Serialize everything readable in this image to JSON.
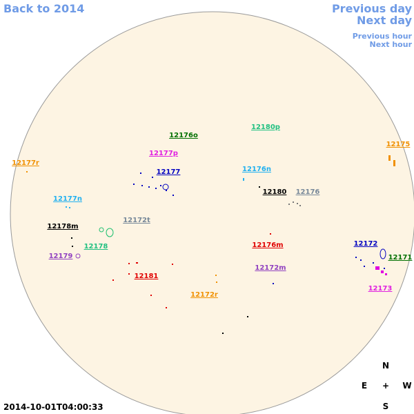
{
  "navigation": {
    "back": "Back to 2014",
    "previous_day": "Previous day",
    "next_day": "Next day",
    "previous_hour": "Previous hour",
    "next_hour": "Next hour"
  },
  "regions": [
    "12176o",
    "12180p",
    "12177p",
    "12177",
    "12176n",
    "12175",
    "12177r",
    "12180",
    "12176",
    "12177n",
    "12178m",
    "12172t",
    "12178",
    "12179",
    "12176m",
    "12172",
    "12171",
    "12172m",
    "12181",
    "12173",
    "12172r"
  ],
  "compass": {
    "north": "N",
    "east": "E",
    "center": "+",
    "west": "W",
    "south": "S"
  },
  "timestamp": "2014-10-01T04:00:33"
}
